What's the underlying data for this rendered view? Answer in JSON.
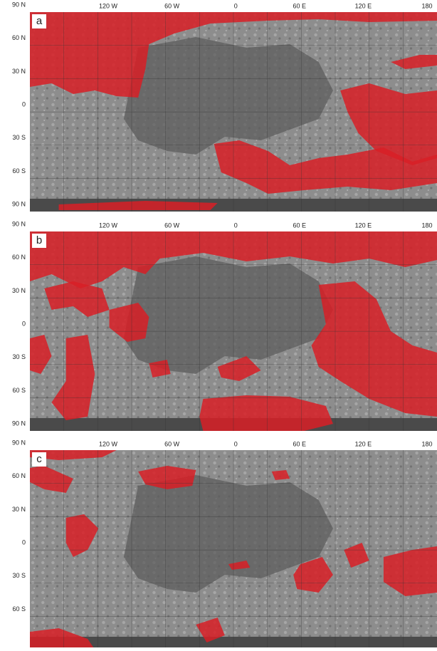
{
  "panels": [
    {
      "label": "a",
      "lon_labels": [
        "120 W",
        "60 W",
        "0",
        "60 E",
        "120 E",
        "180"
      ],
      "lat_labels": [
        "90 N",
        "60 N",
        "30 N",
        "0",
        "30 S",
        "60 S",
        "90 N"
      ]
    },
    {
      "label": "b",
      "lon_labels": [
        "120 W",
        "60 W",
        "0",
        "60 E",
        "120 E",
        "180"
      ],
      "lat_labels": [
        "90 N",
        "60 N",
        "30 N",
        "0",
        "30 S",
        "60 S",
        "90 N"
      ]
    },
    {
      "label": "c",
      "lon_labels": [
        "120 W",
        "60 W",
        "0",
        "60 E",
        "120 E",
        "180"
      ],
      "lat_labels": [
        "90 N",
        "60 N",
        "30 N",
        "0",
        "30 S",
        "60 S"
      ]
    }
  ]
}
